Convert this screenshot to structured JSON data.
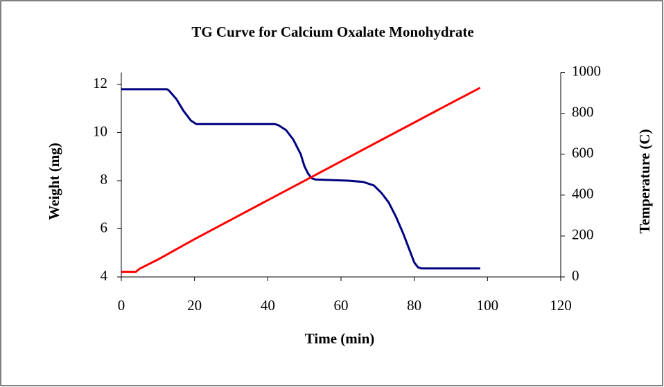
{
  "chart_data": {
    "type": "line",
    "title": "TG Curve for Calcium Oxalate Monohydrate",
    "x_label": "Time (min)",
    "y_label": "Weight (mg)",
    "y2_label": "Temperature (C)",
    "xlim": [
      0,
      120
    ],
    "xticks": [
      0,
      20,
      40,
      60,
      80,
      100,
      120
    ],
    "ylim": [
      4,
      12.5
    ],
    "yticks": [
      4,
      6,
      8,
      10,
      12
    ],
    "y2lim": [
      0,
      1000
    ],
    "y2ticks": [
      0,
      200,
      400,
      600,
      800,
      1000
    ],
    "series": [
      {
        "name": "Weight",
        "color": "#000080",
        "x": [
          0,
          12.5,
          13,
          15,
          17,
          19,
          20.5,
          42,
          43,
          45,
          47,
          49,
          50,
          51,
          52,
          53,
          62,
          66,
          69,
          71,
          73,
          75,
          77,
          79,
          80,
          81,
          82,
          98
        ],
        "values": [
          11.8,
          11.8,
          11.75,
          11.4,
          10.9,
          10.5,
          10.35,
          10.35,
          10.3,
          10.1,
          9.7,
          9.1,
          8.6,
          8.3,
          8.1,
          8.05,
          8.0,
          7.95,
          7.8,
          7.5,
          7.1,
          6.5,
          5.8,
          5.0,
          4.6,
          4.4,
          4.35,
          4.35
        ]
      },
      {
        "name": "Temperature",
        "color": "#ff0000",
        "axis": "y2",
        "x": [
          0,
          4,
          5,
          10,
          20,
          30,
          40,
          50,
          60,
          70,
          80,
          90,
          98
        ],
        "values": [
          25,
          25,
          40,
          85,
          185,
          280,
          375,
          470,
          565,
          660,
          755,
          850,
          925
        ]
      }
    ]
  }
}
